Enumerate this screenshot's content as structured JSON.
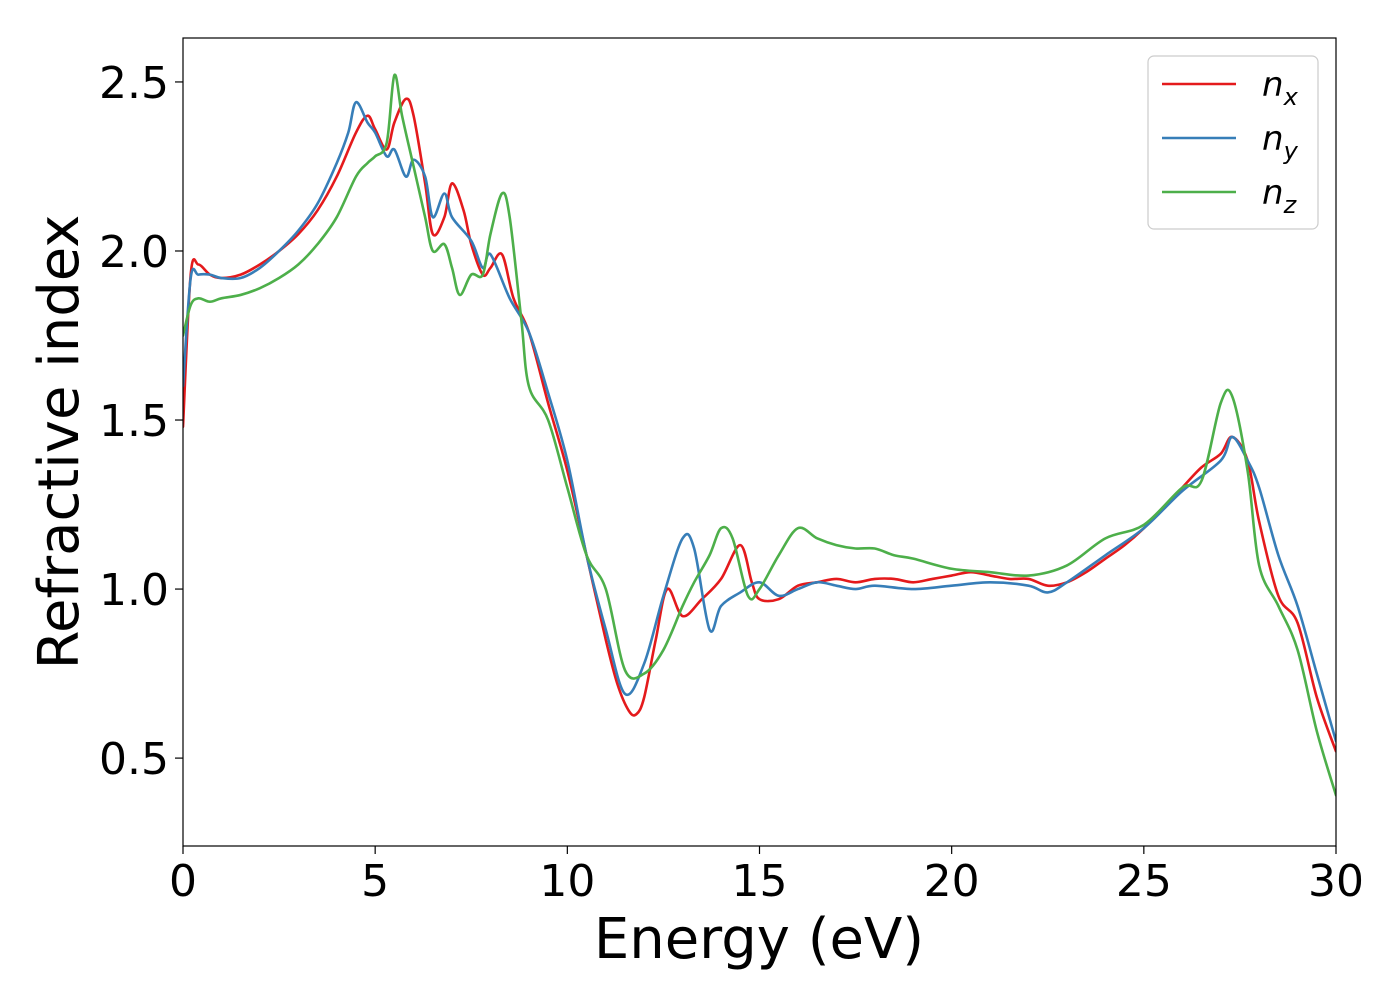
{
  "chart_data": {
    "type": "line",
    "xlabel": "Energy (eV)",
    "ylabel": "Refractive index",
    "xlim": [
      0,
      30
    ],
    "ylim": [
      0.24,
      2.63
    ],
    "xticks": [
      0,
      5,
      10,
      15,
      20,
      25,
      30
    ],
    "xtick_labels": [
      "0",
      "5",
      "10",
      "15",
      "20",
      "25",
      "30"
    ],
    "yticks": [
      0.5,
      1.0,
      1.5,
      2.0,
      2.5
    ],
    "ytick_labels": [
      "0.5",
      "1.0",
      "1.5",
      "2.0",
      "2.5"
    ],
    "grid": false,
    "legend_position": "top-right",
    "series": [
      {
        "name": "n_x",
        "label_main": "n",
        "label_sub": "x",
        "color": "#e41a1c",
        "x": [
          0,
          0.2,
          0.4,
          0.7,
          1.0,
          1.5,
          2.0,
          2.5,
          3.0,
          3.5,
          4.0,
          4.5,
          4.8,
          5.0,
          5.3,
          5.5,
          5.8,
          6.0,
          6.3,
          6.5,
          6.8,
          7.0,
          7.3,
          7.5,
          7.8,
          8.0,
          8.3,
          8.6,
          9.0,
          9.5,
          10.0,
          10.5,
          11.0,
          11.3,
          11.6,
          11.8,
          12.0,
          12.3,
          12.6,
          13.0,
          13.5,
          14.0,
          14.5,
          14.8,
          15.0,
          15.5,
          16.0,
          16.5,
          17.0,
          17.5,
          18.0,
          18.5,
          19.0,
          19.5,
          20.0,
          20.5,
          21.0,
          21.5,
          22.0,
          22.5,
          23.0,
          23.5,
          24.0,
          24.5,
          25.0,
          25.5,
          26.0,
          26.5,
          27.0,
          27.3,
          27.7,
          28.0,
          28.5,
          29.0,
          29.5,
          30.0
        ],
        "values": [
          1.48,
          1.93,
          1.96,
          1.93,
          1.92,
          1.93,
          1.96,
          2.0,
          2.05,
          2.12,
          2.22,
          2.35,
          2.4,
          2.36,
          2.3,
          2.38,
          2.45,
          2.4,
          2.2,
          2.05,
          2.1,
          2.2,
          2.12,
          2.02,
          1.93,
          1.95,
          1.99,
          1.86,
          1.76,
          1.55,
          1.35,
          1.1,
          0.85,
          0.72,
          0.64,
          0.63,
          0.68,
          0.85,
          1.0,
          0.92,
          0.97,
          1.03,
          1.13,
          1.02,
          0.97,
          0.97,
          1.01,
          1.02,
          1.03,
          1.02,
          1.03,
          1.03,
          1.02,
          1.03,
          1.04,
          1.05,
          1.04,
          1.03,
          1.03,
          1.01,
          1.02,
          1.05,
          1.09,
          1.13,
          1.18,
          1.24,
          1.3,
          1.36,
          1.4,
          1.45,
          1.38,
          1.2,
          0.98,
          0.9,
          0.68,
          0.52
        ]
      },
      {
        "name": "n_y",
        "label_main": "n",
        "label_sub": "y",
        "color": "#377eb8",
        "x": [
          0,
          0.2,
          0.4,
          0.7,
          1.0,
          1.5,
          2.0,
          2.5,
          3.0,
          3.5,
          4.0,
          4.3,
          4.5,
          4.8,
          5.0,
          5.3,
          5.5,
          5.8,
          6.0,
          6.3,
          6.5,
          6.8,
          7.0,
          7.5,
          7.8,
          8.0,
          8.5,
          9.0,
          9.5,
          10.0,
          10.5,
          11.0,
          11.5,
          12.0,
          12.5,
          13.0,
          13.3,
          13.7,
          14.0,
          14.5,
          15.0,
          15.5,
          16.0,
          16.5,
          17.0,
          17.5,
          18.0,
          19.0,
          20.0,
          21.0,
          22.0,
          22.5,
          23.0,
          24.0,
          25.0,
          26.0,
          27.0,
          27.3,
          27.7,
          28.0,
          28.5,
          29.0,
          29.5,
          30.0
        ],
        "values": [
          1.6,
          1.92,
          1.93,
          1.93,
          1.92,
          1.92,
          1.95,
          2.0,
          2.06,
          2.14,
          2.26,
          2.35,
          2.44,
          2.38,
          2.35,
          2.28,
          2.3,
          2.22,
          2.27,
          2.22,
          2.1,
          2.17,
          2.1,
          2.03,
          1.95,
          1.99,
          1.86,
          1.76,
          1.58,
          1.38,
          1.1,
          0.88,
          0.69,
          0.78,
          0.98,
          1.15,
          1.12,
          0.88,
          0.95,
          0.99,
          1.02,
          0.98,
          1.0,
          1.02,
          1.01,
          1.0,
          1.01,
          1.0,
          1.01,
          1.02,
          1.01,
          0.99,
          1.02,
          1.1,
          1.18,
          1.29,
          1.38,
          1.45,
          1.38,
          1.3,
          1.1,
          0.95,
          0.75,
          0.55
        ]
      },
      {
        "name": "n_z",
        "label_main": "n",
        "label_sub": "z",
        "color": "#4daf4a",
        "x": [
          0,
          0.2,
          0.4,
          0.7,
          1.0,
          1.5,
          2.0,
          2.5,
          3.0,
          3.5,
          4.0,
          4.5,
          4.8,
          5.0,
          5.3,
          5.5,
          5.7,
          6.0,
          6.3,
          6.5,
          6.8,
          7.0,
          7.2,
          7.5,
          7.8,
          8.0,
          8.3,
          8.5,
          8.8,
          9.0,
          9.5,
          10.0,
          10.5,
          11.0,
          11.5,
          12.0,
          12.5,
          13.0,
          13.3,
          13.7,
          14.0,
          14.3,
          14.7,
          15.0,
          15.5,
          16.0,
          16.5,
          17.0,
          17.5,
          18.0,
          18.5,
          19.0,
          20.0,
          21.0,
          22.0,
          23.0,
          24.0,
          25.0,
          26.0,
          26.5,
          27.0,
          27.3,
          27.7,
          28.0,
          28.5,
          29.0,
          29.5,
          30.0
        ],
        "values": [
          1.75,
          1.84,
          1.86,
          1.85,
          1.86,
          1.87,
          1.89,
          1.92,
          1.96,
          2.02,
          2.1,
          2.22,
          2.26,
          2.28,
          2.32,
          2.52,
          2.4,
          2.25,
          2.1,
          2.0,
          2.02,
          1.95,
          1.87,
          1.93,
          1.93,
          2.05,
          2.17,
          2.1,
          1.8,
          1.6,
          1.5,
          1.3,
          1.1,
          1.0,
          0.76,
          0.75,
          0.82,
          0.95,
          1.02,
          1.1,
          1.18,
          1.15,
          0.98,
          1.0,
          1.1,
          1.18,
          1.15,
          1.13,
          1.12,
          1.12,
          1.1,
          1.09,
          1.06,
          1.05,
          1.04,
          1.07,
          1.15,
          1.19,
          1.3,
          1.32,
          1.55,
          1.57,
          1.35,
          1.07,
          0.95,
          0.82,
          0.58,
          0.39
        ]
      }
    ]
  }
}
